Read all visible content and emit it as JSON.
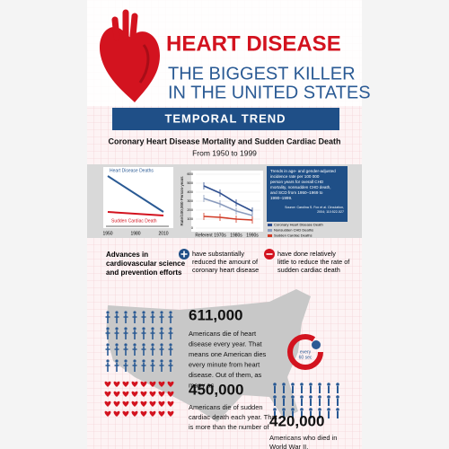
{
  "header": {
    "title": "HEART DISEASE",
    "subtitle": [
      "THE BIGGEST KILLER",
      "IN THE UNITED STATES"
    ]
  },
  "banner": "TEMPORAL TREND",
  "section": {
    "title": "Coronary Heart Disease Mortality and Sudden Cardiac Death",
    "subtitle": "From 1950 to 1999"
  },
  "mini_chart": {
    "lines": [
      "Heart Disease Deaths",
      "Sudden Cardiac Death"
    ],
    "years": [
      "1950",
      "1980",
      "2010"
    ]
  },
  "trend_chart": {
    "y_label": "Rate/100,000 Person-years",
    "ylim": [
      0,
      600
    ],
    "yticks": [
      0,
      100,
      200,
      300,
      400,
      500,
      600
    ],
    "categories": [
      "Referent",
      "1970s",
      "1980s",
      "1990s"
    ],
    "series": [
      {
        "name": "Coronary Heart Disease Death",
        "color": "#2f4f8f",
        "values": [
          470,
          390,
          280,
          190
        ]
      },
      {
        "name": "Nonsudden CHD Deaths",
        "color": "#8a9bbd",
        "values": [
          330,
          270,
          190,
          140
        ]
      },
      {
        "name": "Sudden Cardiac Deaths",
        "color": "#d13a25",
        "values": [
          130,
          120,
          100,
          90
        ]
      }
    ]
  },
  "note": {
    "lines": [
      "Trends in age- and gender-adjusted",
      "incidence rate per 100 000",
      "person years for overall CHD",
      "mortality, nonsudden CHD death,",
      "and SCD from 1950–1969 to",
      "1990–1999."
    ],
    "source": [
      "Source: Carolina S. Fox et al. Circulation,",
      "2004; 110:522-527"
    ]
  },
  "advances": {
    "lead": [
      "Advances in",
      "cardiovascular science",
      "and prevention efforts"
    ],
    "plus": [
      "have substantially",
      "reduced the amount of",
      "coronary heart disease"
    ],
    "minus": [
      "have done relatively",
      "little to reduce the rate of",
      "sudden cardiac death"
    ]
  },
  "stats": [
    {
      "number": "611,000",
      "lines": [
        "Americans die of heart",
        "disease every year. That",
        "means one American dies",
        "every minute from heart",
        "disease. Out of them, as",
        "many as"
      ]
    },
    {
      "number": "450,000",
      "lines": [
        "Americans die of sudden",
        "cardiac death each year. That",
        "is more than the number of"
      ]
    },
    {
      "number": "420,000",
      "lines": [
        "Americans who died in",
        "World War II."
      ]
    }
  ],
  "clock": [
    "every",
    "60 sec"
  ]
}
